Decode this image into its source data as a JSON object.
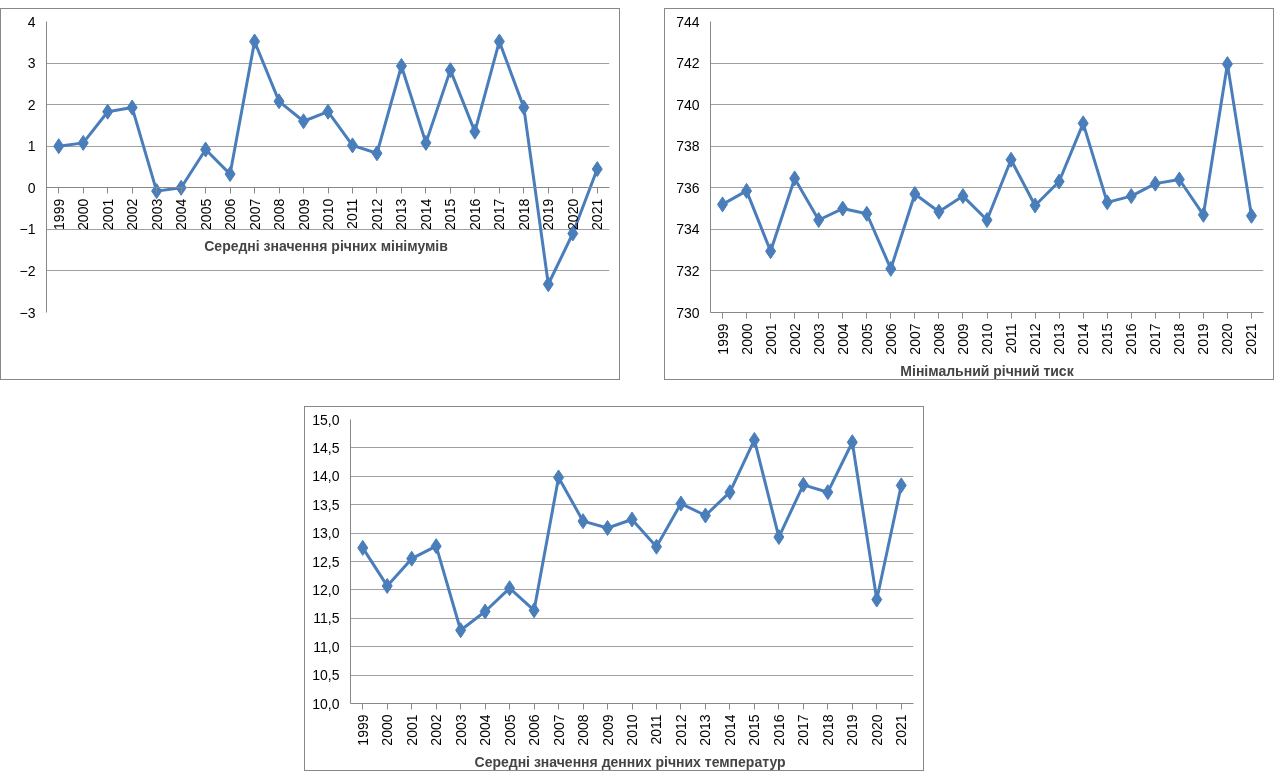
{
  "chart_data": [
    {
      "type": "line",
      "xlabel": "Середні значення  річних мінімумів",
      "categories": [
        "1999",
        "2000",
        "2001",
        "2002",
        "2003",
        "2004",
        "2005",
        "2006",
        "2007",
        "2008",
        "2009",
        "2010",
        "2011",
        "2012",
        "2013",
        "2014",
        "2015",
        "2016",
        "2017",
        "2018",
        "2019",
        "2020",
        "2021"
      ],
      "series": [
        {
          "color": "#4a7ebb",
          "values": [
            1.0,
            1.08,
            1.83,
            1.93,
            -0.08,
            0.0,
            0.92,
            0.33,
            3.52,
            2.08,
            1.6,
            1.83,
            1.02,
            0.83,
            2.93,
            1.08,
            2.83,
            1.35,
            3.52,
            1.93,
            -2.32,
            -1.1,
            0.45
          ]
        }
      ],
      "ylim": [
        -3,
        4
      ],
      "yticks": [
        -3,
        -2,
        -1,
        0,
        1,
        2,
        3,
        4
      ],
      "grid": "y",
      "marker": "diamond",
      "line_style": "solid"
    },
    {
      "type": "line",
      "xlabel": "Мінімальний річний тиск",
      "categories": [
        "1999",
        "2000",
        "2001",
        "2002",
        "2003",
        "2004",
        "2005",
        "2006",
        "2007",
        "2008",
        "2009",
        "2010",
        "2011",
        "2012",
        "2013",
        "2014",
        "2015",
        "2016",
        "2017",
        "2018",
        "2019",
        "2020",
        "2021"
      ],
      "series": [
        {
          "color": "#4a7ebb",
          "values": [
            735.2,
            735.85,
            732.95,
            736.45,
            734.45,
            735.0,
            734.75,
            732.1,
            735.7,
            734.85,
            735.6,
            734.45,
            737.35,
            735.15,
            736.3,
            739.1,
            735.3,
            735.6,
            736.2,
            736.4,
            734.7,
            741.95,
            734.65
          ]
        }
      ],
      "ylim": [
        730,
        744
      ],
      "yticks": [
        730,
        732,
        734,
        736,
        738,
        740,
        742,
        744
      ],
      "grid": "y",
      "marker": "diamond",
      "line_style": "solid"
    },
    {
      "type": "line",
      "xlabel": "Середні значення  денних річних температур",
      "categories": [
        "1999",
        "2000",
        "2001",
        "2002",
        "2003",
        "2004",
        "2005",
        "2006",
        "2007",
        "2008",
        "2009",
        "2010",
        "2011",
        "2012",
        "2013",
        "2014",
        "2015",
        "2016",
        "2017",
        "2018",
        "2019",
        "2020",
        "2021"
      ],
      "series": [
        {
          "color": "#4a7ebb",
          "values": [
            12.74,
            12.07,
            12.55,
            12.77,
            11.29,
            11.62,
            12.03,
            11.64,
            13.98,
            13.21,
            13.09,
            13.24,
            12.76,
            13.52,
            13.31,
            13.72,
            14.64,
            12.93,
            13.85,
            13.72,
            14.6,
            11.83,
            13.84
          ]
        }
      ],
      "ylim": [
        10,
        15
      ],
      "yticks": [
        {
          "value": 10,
          "label": "10,0"
        },
        {
          "value": 10.5,
          "label": "10,5"
        },
        {
          "value": 11,
          "label": "11,0"
        },
        {
          "value": 11.5,
          "label": "11,5"
        },
        {
          "value": 12,
          "label": "12,0"
        },
        {
          "value": 12.5,
          "label": "12,5"
        },
        {
          "value": 13,
          "label": "13,0"
        },
        {
          "value": 13.5,
          "label": "13,5"
        },
        {
          "value": 14,
          "label": "14,0"
        },
        {
          "value": 14.5,
          "label": "14,5"
        },
        {
          "value": 15,
          "label": "15,0"
        }
      ],
      "grid": "y",
      "marker": "diamond",
      "line_style": "solid"
    }
  ]
}
